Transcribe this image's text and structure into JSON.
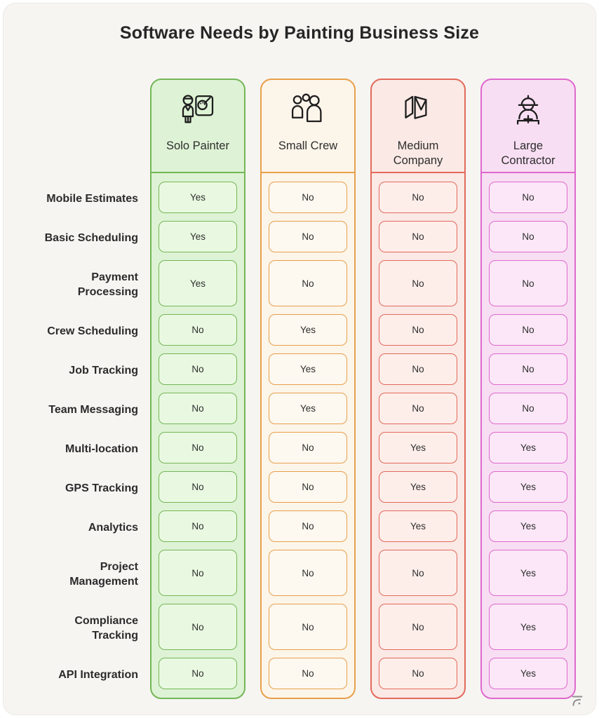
{
  "title": "Software Needs by Painting Business Size",
  "colors": {
    "page_bg": "#f6f5f2",
    "title_text": "#262626",
    "label_text": "#2b2b2b",
    "cell_text": "#2e2e2e",
    "watermark": "#8f8f8f"
  },
  "columns": [
    {
      "label": "Solo Painter",
      "icon": "solo-painter-icon",
      "border": "#74b657",
      "bg": "#def3d5",
      "cell_bg": "#e9f9e1"
    },
    {
      "label": "Small Crew",
      "icon": "small-crew-icon",
      "border": "#e8a04a",
      "bg": "#fcf5ea",
      "cell_bg": "#fdf8f0"
    },
    {
      "label": "Medium Company",
      "icon": "medium-company-icon",
      "border": "#e3695b",
      "bg": "#fae9e5",
      "cell_bg": "#fdeeea"
    },
    {
      "label": "Large Contractor",
      "icon": "large-contractor-icon",
      "border": "#df68cd",
      "bg": "#f8def3",
      "cell_bg": "#fbe7f7"
    }
  ],
  "rows": [
    {
      "label": "Mobile Estimates",
      "values": [
        "Yes",
        "No",
        "No",
        "No"
      ]
    },
    {
      "label": "Basic Scheduling",
      "values": [
        "Yes",
        "No",
        "No",
        "No"
      ]
    },
    {
      "label": "Payment Processing",
      "values": [
        "Yes",
        "No",
        "No",
        "No"
      ]
    },
    {
      "label": "Crew Scheduling",
      "values": [
        "No",
        "Yes",
        "No",
        "No"
      ]
    },
    {
      "label": "Job Tracking",
      "values": [
        "No",
        "Yes",
        "No",
        "No"
      ]
    },
    {
      "label": "Team Messaging",
      "values": [
        "No",
        "Yes",
        "No",
        "No"
      ]
    },
    {
      "label": "Multi-location",
      "values": [
        "No",
        "No",
        "Yes",
        "Yes"
      ]
    },
    {
      "label": "GPS Tracking",
      "values": [
        "No",
        "No",
        "Yes",
        "Yes"
      ]
    },
    {
      "label": "Analytics",
      "values": [
        "No",
        "No",
        "Yes",
        "Yes"
      ]
    },
    {
      "label": "Project Management",
      "values": [
        "No",
        "No",
        "No",
        "Yes"
      ]
    },
    {
      "label": "Compliance Tracking",
      "values": [
        "No",
        "No",
        "No",
        "Yes"
      ]
    },
    {
      "label": "API Integration",
      "values": [
        "No",
        "No",
        "No",
        "Yes"
      ]
    }
  ],
  "watermark_icon": "flourish-logo-icon",
  "chart_data": {
    "type": "table",
    "title": "Software Needs by Painting Business Size",
    "columns": [
      "Solo Painter",
      "Small Crew",
      "Medium Company",
      "Large Contractor"
    ],
    "row_labels": [
      "Mobile Estimates",
      "Basic Scheduling",
      "Payment Processing",
      "Crew Scheduling",
      "Job Tracking",
      "Team Messaging",
      "Multi-location",
      "GPS Tracking",
      "Analytics",
      "Project Management",
      "Compliance Tracking",
      "API Integration"
    ],
    "series": [
      {
        "name": "Solo Painter",
        "values": [
          "Yes",
          "Yes",
          "Yes",
          "No",
          "No",
          "No",
          "No",
          "No",
          "No",
          "No",
          "No",
          "No"
        ]
      },
      {
        "name": "Small Crew",
        "values": [
          "No",
          "No",
          "No",
          "Yes",
          "Yes",
          "Yes",
          "No",
          "No",
          "No",
          "No",
          "No",
          "No"
        ]
      },
      {
        "name": "Medium Company",
        "values": [
          "No",
          "No",
          "No",
          "No",
          "No",
          "No",
          "Yes",
          "Yes",
          "Yes",
          "No",
          "No",
          "No"
        ]
      },
      {
        "name": "Large Contractor",
        "values": [
          "No",
          "No",
          "No",
          "No",
          "No",
          "No",
          "Yes",
          "Yes",
          "Yes",
          "Yes",
          "Yes",
          "Yes"
        ]
      }
    ],
    "legend_position": "none",
    "grid": false
  }
}
